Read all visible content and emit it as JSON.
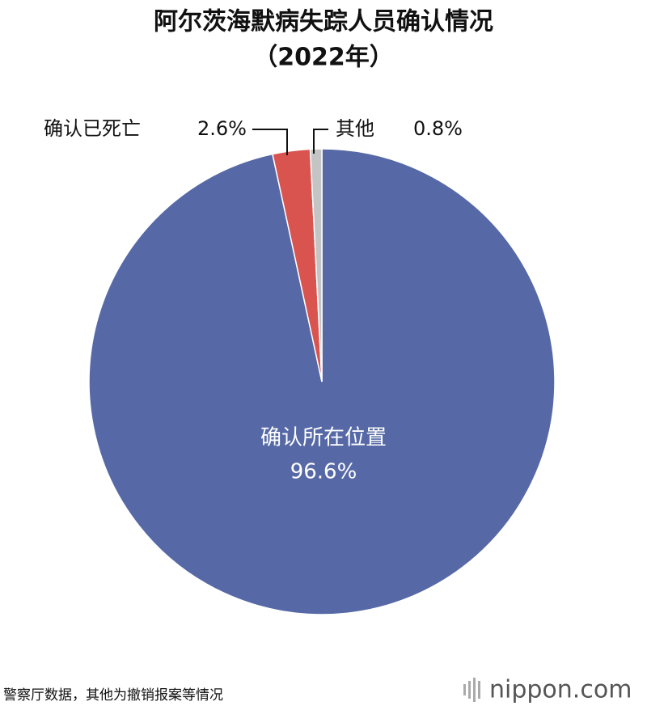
{
  "chart_data": {
    "type": "pie",
    "title": "阿尔茨海默病失踪人员确认情况",
    "subtitle": "（2022年）",
    "categories": [
      "确认所在位置",
      "确认已死亡",
      "其他"
    ],
    "values": [
      96.6,
      2.6,
      0.8
    ],
    "value_labels": [
      "96.6%",
      "2.6%",
      "0.8%"
    ],
    "colors": [
      "#5669a6",
      "#d9534f",
      "#c4c4c4"
    ],
    "source": "警察厅数据，其他为撤销报案等情况",
    "logo": "nippon.com"
  }
}
